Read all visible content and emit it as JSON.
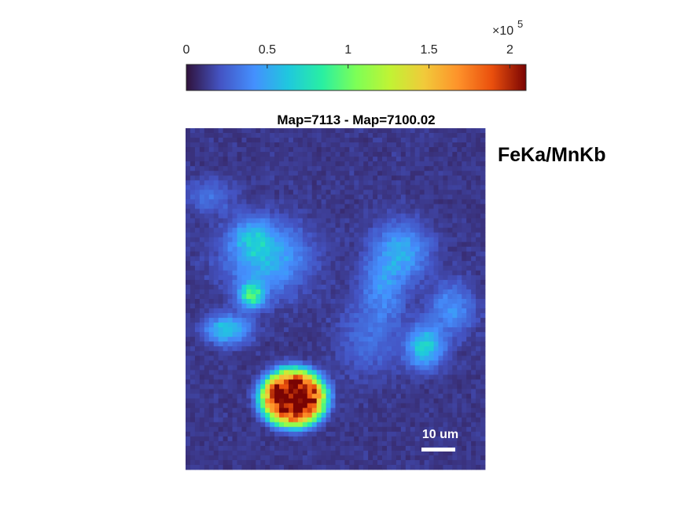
{
  "chart_data": {
    "type": "heatmap",
    "title": "Map=7113 - Map=7100.02",
    "side_label": "FeKa/MnKb",
    "colormap": "turbo",
    "colorbar": {
      "location": "top",
      "range": [
        0,
        2.1
      ],
      "ticks": [
        0,
        0.5,
        1,
        1.5,
        2
      ],
      "tick_labels": [
        "0",
        "0.5",
        "1",
        "1.5",
        "2"
      ],
      "exponent_base": "×10",
      "exponent_power": "5"
    },
    "grid_size": {
      "cols": 64,
      "rows": 72
    },
    "background_level": 0.12,
    "features": [
      {
        "cx": 0.27,
        "cy": 0.38,
        "rx": 0.13,
        "ry": 0.1,
        "peak": 0.45
      },
      {
        "cx": 0.22,
        "cy": 0.32,
        "rx": 0.06,
        "ry": 0.05,
        "peak": 0.3
      },
      {
        "cx": 0.22,
        "cy": 0.49,
        "rx": 0.04,
        "ry": 0.035,
        "peak": 0.75
      },
      {
        "cx": 0.14,
        "cy": 0.59,
        "rx": 0.07,
        "ry": 0.04,
        "peak": 0.55
      },
      {
        "cx": 0.72,
        "cy": 0.36,
        "rx": 0.09,
        "ry": 0.08,
        "peak": 0.4
      },
      {
        "cx": 0.66,
        "cy": 0.47,
        "rx": 0.07,
        "ry": 0.09,
        "peak": 0.28
      },
      {
        "cx": 0.89,
        "cy": 0.53,
        "rx": 0.07,
        "ry": 0.07,
        "peak": 0.32
      },
      {
        "cx": 0.8,
        "cy": 0.64,
        "rx": 0.06,
        "ry": 0.06,
        "peak": 0.55
      },
      {
        "cx": 0.61,
        "cy": 0.62,
        "rx": 0.1,
        "ry": 0.1,
        "peak": 0.18
      },
      {
        "cx": 0.36,
        "cy": 0.79,
        "rx": 0.11,
        "ry": 0.085,
        "peak": 2.05,
        "sharp": true
      },
      {
        "cx": 0.08,
        "cy": 0.2,
        "rx": 0.08,
        "ry": 0.05,
        "peak": 0.18
      }
    ],
    "scale_bar": {
      "label": "10 um"
    }
  }
}
